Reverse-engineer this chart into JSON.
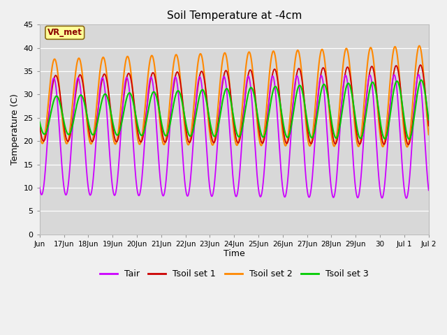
{
  "title": "Soil Temperature at -4cm",
  "xlabel": "Time",
  "ylabel": "Temperature (C)",
  "ylim": [
    0,
    45
  ],
  "yticks": [
    0,
    5,
    10,
    15,
    20,
    25,
    30,
    35,
    40,
    45
  ],
  "fig_bg_color": "#ffffff",
  "plot_bg_color": "#e8e8e8",
  "inner_bg_color": "#d8d8d8",
  "annotation_text": "VR_met",
  "annotation_bg": "#ffff99",
  "annotation_border": "#8b6914",
  "annotation_text_color": "#8b0000",
  "line_colors": {
    "Tair": "#cc00ff",
    "Tsoil1": "#cc0000",
    "Tsoil2": "#ff8800",
    "Tsoil3": "#00cc00"
  },
  "legend_labels": [
    "Tair",
    "Tsoil set 1",
    "Tsoil set 2",
    "Tsoil set 3"
  ]
}
